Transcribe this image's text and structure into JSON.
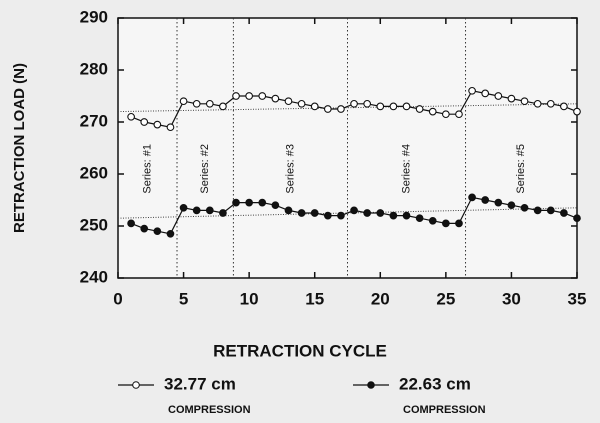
{
  "chart_data": {
    "type": "line",
    "xlabel": "RETRACTION CYCLE",
    "ylabel": "RETRACTION LOAD (N)",
    "x": [
      1,
      2,
      3,
      4,
      5,
      6,
      7,
      8,
      9,
      10,
      11,
      12,
      13,
      14,
      15,
      16,
      17,
      18,
      19,
      20,
      21,
      22,
      23,
      24,
      25,
      26,
      27,
      28,
      29,
      30,
      31,
      32,
      33,
      34,
      35
    ],
    "series": [
      {
        "name": "32.77 cm",
        "subname": "COMPRESSION",
        "marker": "open",
        "color": "#111111",
        "values": [
          271,
          270,
          269.5,
          269,
          274,
          273.5,
          273.5,
          273,
          275,
          275,
          275,
          274.5,
          274,
          273.5,
          273,
          272.5,
          272.5,
          273.5,
          273.5,
          273,
          273,
          273,
          272.5,
          272,
          271.5,
          271.5,
          276,
          275.5,
          275,
          274.5,
          274,
          273.5,
          273.5,
          273,
          272
        ],
        "trend": [
          272,
          273.5
        ]
      },
      {
        "name": "22.63 cm",
        "subname": "COMPRESSION",
        "marker": "filled",
        "color": "#111111",
        "values": [
          250.5,
          249.5,
          249,
          248.5,
          253.5,
          253,
          253,
          252.5,
          254.5,
          254.5,
          254.5,
          254,
          253,
          252.5,
          252.5,
          252,
          252,
          253,
          252.5,
          252.5,
          252,
          252,
          251.5,
          251,
          250.5,
          250.5,
          255.5,
          255,
          254.5,
          254,
          253.5,
          253,
          253,
          252.5,
          251.5
        ],
        "trend": [
          251.5,
          253.5
        ]
      }
    ],
    "dividers": [
      4.5,
      8.8,
      17.5,
      26.5
    ],
    "annotations": [
      "Series: #1",
      "Series: #2",
      "Series: #3",
      "Series: #4",
      "Series: #5"
    ],
    "xlim": [
      0,
      35
    ],
    "xticks": [
      0,
      5,
      10,
      15,
      20,
      25,
      30,
      35
    ],
    "ylim": [
      240,
      290
    ],
    "yticks": [
      240,
      250,
      260,
      270,
      280,
      290
    ]
  }
}
